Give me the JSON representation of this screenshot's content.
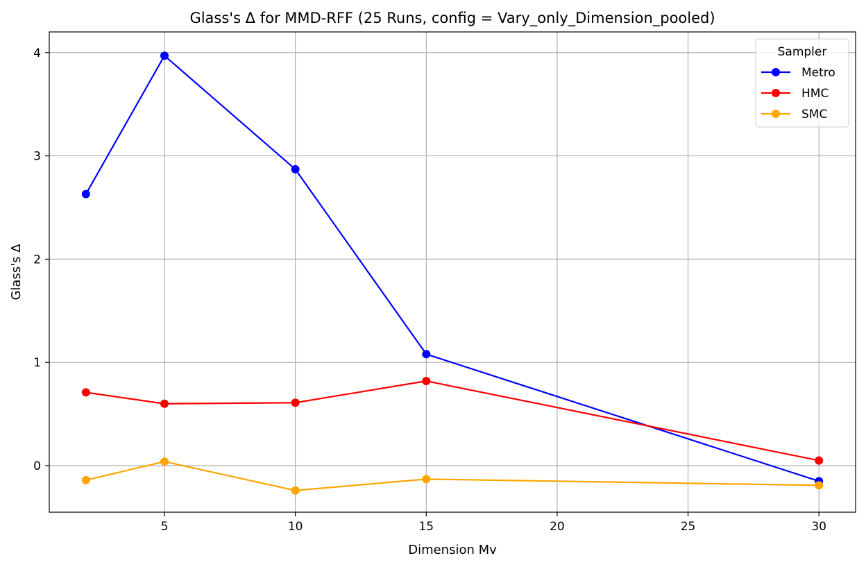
{
  "chart_data": {
    "type": "line",
    "title": "Glass's Δ for MMD-RFF (25 Runs, config = Vary_only_Dimension_pooled)",
    "xlabel": "Dimension Mv",
    "ylabel": "Glass's Δ",
    "x": [
      2,
      5,
      10,
      15,
      30
    ],
    "xlim": [
      0.6,
      31.4
    ],
    "ylim": [
      -0.45,
      4.2
    ],
    "xticks": [
      5,
      10,
      15,
      20,
      25,
      30
    ],
    "yticks": [
      0,
      1,
      2,
      3,
      4
    ],
    "grid": true,
    "legend": {
      "title": "Sampler",
      "position": "top-right"
    },
    "series": [
      {
        "name": "Metro",
        "color": "#0000ff",
        "values": [
          2.63,
          3.97,
          2.87,
          1.08,
          -0.15
        ]
      },
      {
        "name": "HMC",
        "color": "#ff0000",
        "values": [
          0.71,
          0.6,
          0.61,
          0.82,
          0.05
        ]
      },
      {
        "name": "SMC",
        "color": "#ffa500",
        "values": [
          -0.14,
          0.04,
          -0.24,
          -0.13,
          -0.19
        ]
      }
    ]
  }
}
